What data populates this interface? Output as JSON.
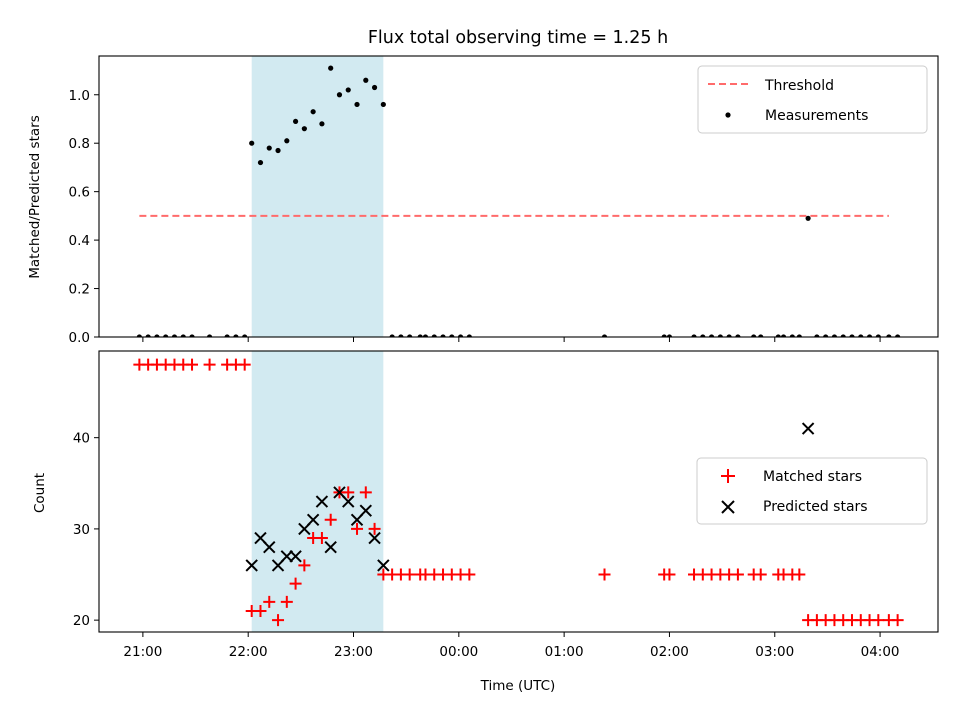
{
  "chart_data": [
    {
      "type": "scatter",
      "title": "Flux total observing time = 1.25 h",
      "xlabel": "",
      "ylabel": "Matched/Predicted stars",
      "xlim": [
        "20:35",
        "04:33"
      ],
      "ylim": [
        0,
        1.16
      ],
      "yticks": [
        0.0,
        0.2,
        0.4,
        0.6,
        0.8,
        1.0
      ],
      "ytick_labels": [
        "0.0",
        "0.2",
        "0.4",
        "0.6",
        "0.8",
        "1.0"
      ],
      "xtick_labels_shown": false,
      "grid": false,
      "legend_position": "upper right",
      "shaded_interval": {
        "start": "22:02",
        "end": "23:17",
        "color": "#add8e6"
      },
      "threshold": {
        "label": "Threshold",
        "value": 0.5,
        "x_start": "20:58",
        "x_end": "04:05",
        "color": "#ff6b6b"
      },
      "series": [
        {
          "name": "Measurements",
          "color": "#000000",
          "points": [
            {
              "x": "20:58",
              "y": 0
            },
            {
              "x": "21:03",
              "y": 0
            },
            {
              "x": "21:08",
              "y": 0
            },
            {
              "x": "21:13",
              "y": 0
            },
            {
              "x": "21:18",
              "y": 0
            },
            {
              "x": "21:23",
              "y": 0
            },
            {
              "x": "21:28",
              "y": 0
            },
            {
              "x": "21:38",
              "y": 0
            },
            {
              "x": "21:48",
              "y": 0
            },
            {
              "x": "21:53",
              "y": 0
            },
            {
              "x": "21:58",
              "y": 0
            },
            {
              "x": "22:02",
              "y": 0.8
            },
            {
              "x": "22:07",
              "y": 0.72
            },
            {
              "x": "22:12",
              "y": 0.78
            },
            {
              "x": "22:17",
              "y": 0.77
            },
            {
              "x": "22:22",
              "y": 0.81
            },
            {
              "x": "22:27",
              "y": 0.89
            },
            {
              "x": "22:32",
              "y": 0.86
            },
            {
              "x": "22:37",
              "y": 0.93
            },
            {
              "x": "22:42",
              "y": 0.88
            },
            {
              "x": "22:47",
              "y": 1.11
            },
            {
              "x": "22:52",
              "y": 1.0
            },
            {
              "x": "22:57",
              "y": 1.02
            },
            {
              "x": "23:02",
              "y": 0.96
            },
            {
              "x": "23:07",
              "y": 1.06
            },
            {
              "x": "23:12",
              "y": 1.03
            },
            {
              "x": "23:17",
              "y": 0.96
            },
            {
              "x": "23:22",
              "y": 0
            },
            {
              "x": "23:27",
              "y": 0
            },
            {
              "x": "23:32",
              "y": 0
            },
            {
              "x": "23:38",
              "y": 0
            },
            {
              "x": "23:41",
              "y": 0
            },
            {
              "x": "23:46",
              "y": 0
            },
            {
              "x": "23:51",
              "y": 0
            },
            {
              "x": "23:56",
              "y": 0
            },
            {
              "x": "00:01",
              "y": 0
            },
            {
              "x": "00:06",
              "y": 0
            },
            {
              "x": "01:23",
              "y": 0
            },
            {
              "x": "01:57",
              "y": 0
            },
            {
              "x": "02:00",
              "y": 0
            },
            {
              "x": "02:14",
              "y": 0
            },
            {
              "x": "02:19",
              "y": 0
            },
            {
              "x": "02:24",
              "y": 0
            },
            {
              "x": "02:29",
              "y": 0
            },
            {
              "x": "02:34",
              "y": 0
            },
            {
              "x": "02:39",
              "y": 0
            },
            {
              "x": "02:48",
              "y": 0
            },
            {
              "x": "02:52",
              "y": 0
            },
            {
              "x": "03:02",
              "y": 0
            },
            {
              "x": "03:05",
              "y": 0
            },
            {
              "x": "03:10",
              "y": 0
            },
            {
              "x": "03:14",
              "y": 0
            },
            {
              "x": "03:19",
              "y": 0.49
            },
            {
              "x": "03:24",
              "y": 0
            },
            {
              "x": "03:29",
              "y": 0
            },
            {
              "x": "03:34",
              "y": 0
            },
            {
              "x": "03:39",
              "y": 0
            },
            {
              "x": "03:44",
              "y": 0
            },
            {
              "x": "03:49",
              "y": 0
            },
            {
              "x": "03:54",
              "y": 0
            },
            {
              "x": "03:59",
              "y": 0
            },
            {
              "x": "04:05",
              "y": 0
            },
            {
              "x": "04:10",
              "y": 0
            }
          ]
        }
      ]
    },
    {
      "type": "scatter",
      "title": "",
      "xlabel": "Time (UTC)",
      "ylabel": "Count",
      "xlim": [
        "20:35",
        "04:33"
      ],
      "ylim": [
        18.7,
        49.5
      ],
      "yticks": [
        20,
        30,
        40
      ],
      "ytick_labels": [
        "20",
        "30",
        "40"
      ],
      "xticks": [
        "21:00",
        "22:00",
        "23:00",
        "00:00",
        "01:00",
        "02:00",
        "03:00",
        "04:00"
      ],
      "xtick_labels": [
        "21:00",
        "22:00",
        "23:00",
        "00:00",
        "01:00",
        "02:00",
        "03:00",
        "04:00"
      ],
      "grid": false,
      "legend_position": "center right",
      "shaded_interval": {
        "start": "22:02",
        "end": "23:17",
        "color": "#add8e6"
      },
      "series": [
        {
          "name": "Matched stars",
          "marker": "+",
          "color": "#ff0000",
          "points": [
            {
              "x": "20:58",
              "y": 48
            },
            {
              "x": "21:03",
              "y": 48
            },
            {
              "x": "21:08",
              "y": 48
            },
            {
              "x": "21:13",
              "y": 48
            },
            {
              "x": "21:18",
              "y": 48
            },
            {
              "x": "21:23",
              "y": 48
            },
            {
              "x": "21:28",
              "y": 48
            },
            {
              "x": "21:38",
              "y": 48
            },
            {
              "x": "21:48",
              "y": 48
            },
            {
              "x": "21:53",
              "y": 48
            },
            {
              "x": "21:58",
              "y": 48
            },
            {
              "x": "22:02",
              "y": 21
            },
            {
              "x": "22:07",
              "y": 21
            },
            {
              "x": "22:12",
              "y": 22
            },
            {
              "x": "22:17",
              "y": 20
            },
            {
              "x": "22:22",
              "y": 22
            },
            {
              "x": "22:27",
              "y": 24
            },
            {
              "x": "22:32",
              "y": 26
            },
            {
              "x": "22:37",
              "y": 29
            },
            {
              "x": "22:42",
              "y": 29
            },
            {
              "x": "22:47",
              "y": 31
            },
            {
              "x": "22:52",
              "y": 34
            },
            {
              "x": "22:57",
              "y": 34
            },
            {
              "x": "23:02",
              "y": 30
            },
            {
              "x": "23:07",
              "y": 34
            },
            {
              "x": "23:12",
              "y": 30
            },
            {
              "x": "23:17",
              "y": 25
            },
            {
              "x": "23:22",
              "y": 25
            },
            {
              "x": "23:27",
              "y": 25
            },
            {
              "x": "23:32",
              "y": 25
            },
            {
              "x": "23:38",
              "y": 25
            },
            {
              "x": "23:41",
              "y": 25
            },
            {
              "x": "23:46",
              "y": 25
            },
            {
              "x": "23:51",
              "y": 25
            },
            {
              "x": "23:56",
              "y": 25
            },
            {
              "x": "00:01",
              "y": 25
            },
            {
              "x": "00:06",
              "y": 25
            },
            {
              "x": "01:23",
              "y": 25
            },
            {
              "x": "01:57",
              "y": 25
            },
            {
              "x": "02:00",
              "y": 25
            },
            {
              "x": "02:14",
              "y": 25
            },
            {
              "x": "02:19",
              "y": 25
            },
            {
              "x": "02:24",
              "y": 25
            },
            {
              "x": "02:29",
              "y": 25
            },
            {
              "x": "02:34",
              "y": 25
            },
            {
              "x": "02:39",
              "y": 25
            },
            {
              "x": "02:48",
              "y": 25
            },
            {
              "x": "02:52",
              "y": 25
            },
            {
              "x": "03:02",
              "y": 25
            },
            {
              "x": "03:05",
              "y": 25
            },
            {
              "x": "03:10",
              "y": 25
            },
            {
              "x": "03:14",
              "y": 25
            },
            {
              "x": "03:19",
              "y": 20
            },
            {
              "x": "03:24",
              "y": 20
            },
            {
              "x": "03:29",
              "y": 20
            },
            {
              "x": "03:34",
              "y": 20
            },
            {
              "x": "03:39",
              "y": 20
            },
            {
              "x": "03:44",
              "y": 20
            },
            {
              "x": "03:49",
              "y": 20
            },
            {
              "x": "03:54",
              "y": 20
            },
            {
              "x": "03:59",
              "y": 20
            },
            {
              "x": "04:05",
              "y": 20
            },
            {
              "x": "04:10",
              "y": 20
            }
          ]
        },
        {
          "name": "Predicted stars",
          "marker": "x",
          "color": "#000000",
          "points": [
            {
              "x": "22:02",
              "y": 26
            },
            {
              "x": "22:07",
              "y": 29
            },
            {
              "x": "22:12",
              "y": 28
            },
            {
              "x": "22:17",
              "y": 26
            },
            {
              "x": "22:22",
              "y": 27
            },
            {
              "x": "22:27",
              "y": 27
            },
            {
              "x": "22:32",
              "y": 30
            },
            {
              "x": "22:37",
              "y": 31
            },
            {
              "x": "22:42",
              "y": 33
            },
            {
              "x": "22:47",
              "y": 28
            },
            {
              "x": "22:52",
              "y": 34
            },
            {
              "x": "22:57",
              "y": 33
            },
            {
              "x": "23:02",
              "y": 31
            },
            {
              "x": "23:07",
              "y": 32
            },
            {
              "x": "23:12",
              "y": 29
            },
            {
              "x": "23:17",
              "y": 26
            },
            {
              "x": "03:19",
              "y": 41
            }
          ]
        }
      ]
    }
  ]
}
